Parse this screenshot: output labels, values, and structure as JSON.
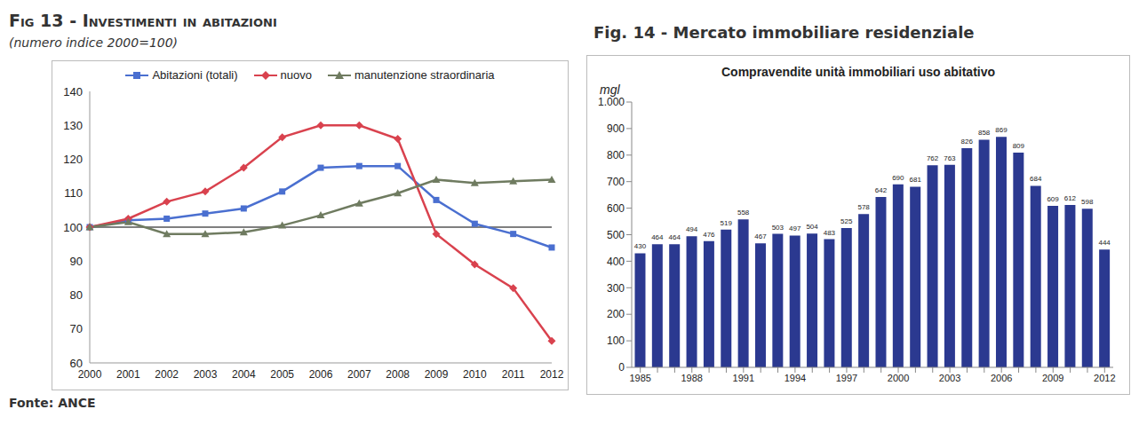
{
  "source": "Fonte: ANCE",
  "chart_data": [
    {
      "type": "line",
      "title": "Fig 13 - Investimenti in abitazioni",
      "subtitle": "(numero indice 2000=100)",
      "categories": [
        "2000",
        "2001",
        "2002",
        "2003",
        "2004",
        "2005",
        "2006",
        "2007",
        "2008",
        "2009",
        "2010",
        "2011",
        "2012"
      ],
      "series": [
        {
          "name": "Abitazioni (totali)",
          "color": "#4a6fd0",
          "marker": "square",
          "values": [
            100,
            102,
            102.5,
            104,
            105.5,
            110.5,
            117.5,
            118,
            118,
            108,
            101,
            98,
            94
          ]
        },
        {
          "name": "nuovo",
          "color": "#d9424e",
          "marker": "diamond",
          "values": [
            100,
            102.5,
            107.5,
            110.5,
            117.5,
            126.5,
            130,
            130,
            126,
            98,
            89,
            82,
            66.5
          ]
        },
        {
          "name": "manutenzione straordinaria",
          "color": "#6f7b60",
          "marker": "triangle",
          "values": [
            100,
            101.5,
            98,
            98,
            98.5,
            100.5,
            103.5,
            107,
            110,
            114,
            113,
            113.5,
            114
          ]
        }
      ],
      "baseline": 100,
      "ylim": [
        60,
        140
      ],
      "yticks": [
        60,
        70,
        80,
        90,
        100,
        110,
        120,
        130,
        140
      ],
      "grid": false,
      "legend": "top"
    },
    {
      "type": "bar",
      "title": "Fig. 14 - Mercato immobiliare residenziale",
      "subtitle": "Compravendite unità immobiliari uso abitativo",
      "ylabel": "mgl",
      "categories": [
        "1985",
        null,
        null,
        "1988",
        null,
        null,
        "1991",
        null,
        null,
        "1994",
        null,
        null,
        "1997",
        null,
        null,
        "2000",
        null,
        null,
        "2003",
        null,
        null,
        "2006",
        null,
        null,
        "2009",
        null,
        null,
        "2012"
      ],
      "values": [
        430,
        464,
        464,
        494,
        476,
        519,
        558,
        467,
        503,
        497,
        504,
        483,
        525,
        578,
        642,
        690,
        681,
        762,
        763,
        826,
        858,
        869,
        809,
        684,
        609,
        612,
        598,
        444
      ],
      "color": "#2b3990",
      "ylim": [
        0,
        1000
      ],
      "yticks": [
        0,
        100,
        200,
        300,
        400,
        500,
        600,
        700,
        800,
        900,
        {
          "value": 1000,
          "label": "1.000"
        }
      ],
      "grid": false,
      "data_labels": true
    }
  ]
}
